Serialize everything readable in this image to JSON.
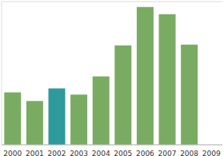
{
  "chart_data": {
    "type": "bar",
    "categories": [
      "2000",
      "2001",
      "2002",
      "2003",
      "2004",
      "2005",
      "2006",
      "2007",
      "2008",
      "2009"
    ],
    "values": [
      1.83,
      1.53,
      1.97,
      1.75,
      2.39,
      3.47,
      4.81,
      4.56,
      3.5,
      null
    ],
    "colors": [
      "#7aab62",
      "#7aab62",
      "#2e9a9c",
      "#7aab62",
      "#7aab62",
      "#7aab62",
      "#7aab62",
      "#7aab62",
      "#7aab62",
      "#7aab62"
    ],
    "ylim": [
      0,
      5
    ],
    "yticks": [
      0,
      1,
      2,
      3,
      4,
      5
    ],
    "grid": true,
    "tick_labels": "x"
  }
}
